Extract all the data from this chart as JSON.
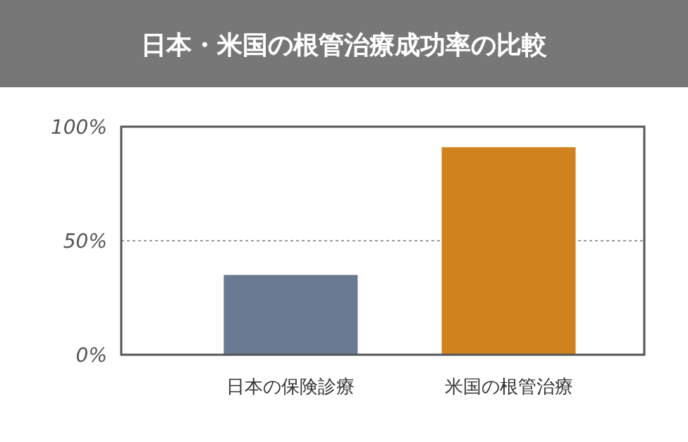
{
  "chart_data": {
    "type": "bar",
    "title": "日本・米国の根管治療成功率の比較",
    "categories": [
      "日本の保険診療",
      "米国の根管治療"
    ],
    "values": [
      35,
      91
    ],
    "colors": [
      "#6b7a93",
      "#cf821e"
    ],
    "ylim": [
      0,
      100
    ],
    "yticks": [
      {
        "value": 0,
        "label": "0%"
      },
      {
        "value": 50,
        "label": "50%"
      },
      {
        "value": 100,
        "label": "100%"
      }
    ],
    "grid": "y"
  }
}
